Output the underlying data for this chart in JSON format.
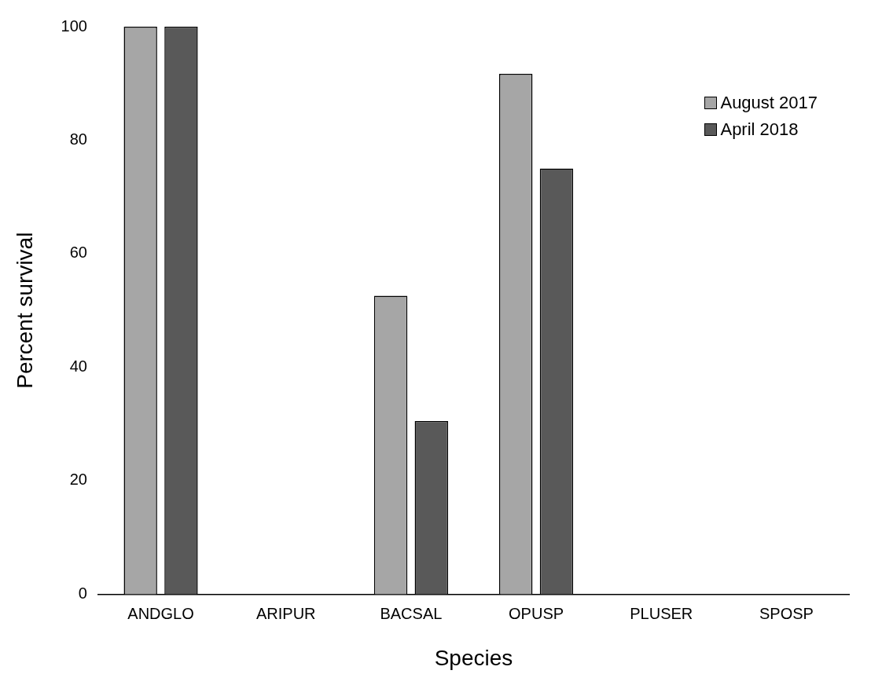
{
  "chart_data": {
    "type": "bar",
    "xlabel": "Species",
    "ylabel": "Percent survival",
    "categories": [
      "ANDGLO",
      "ARIPUR",
      "BACSAL",
      "OPUSP",
      "PLUSER",
      "SPOSP"
    ],
    "series": [
      {
        "name": "August 2017",
        "color": "#a6a6a6",
        "values": [
          100,
          0,
          52.6,
          91.7,
          0,
          0
        ]
      },
      {
        "name": "April 2018",
        "color": "#595959",
        "values": [
          100,
          0,
          30.5,
          75,
          0,
          0
        ]
      }
    ],
    "ylim": [
      0,
      100
    ],
    "yticks": [
      0,
      20,
      40,
      60,
      80,
      100
    ],
    "grid": false,
    "legend": "top right"
  }
}
